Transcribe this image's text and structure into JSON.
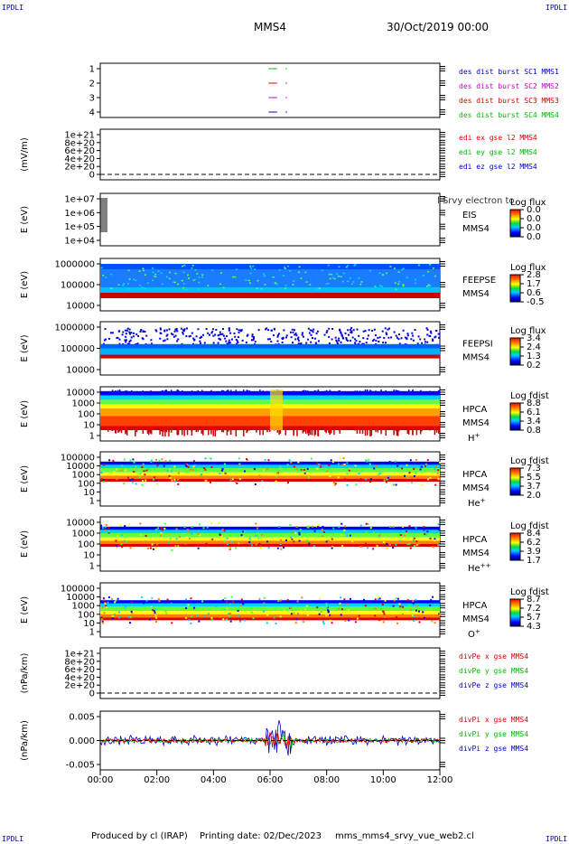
{
  "corner_label": "IPDLI",
  "header": {
    "spacecraft": "MMS4",
    "date": "30/Oct/2019 00:00"
  },
  "footer": {
    "produced": "Produced by cl (IRAP)",
    "printing": "Printing date: 02/Dec/2023",
    "script": "mms_mms4_srvy_vue_web2.cl"
  },
  "colors": {
    "blue": "#0000cc",
    "red": "#dd0000",
    "green": "#00bb00",
    "magenta": "#cc00cc",
    "brand": "#0000aa"
  },
  "chart_data": [
    {
      "type": "line",
      "panel": "burst",
      "yticks": [
        "1",
        "2",
        "3",
        "4"
      ],
      "ylim": [
        0.5,
        4.5
      ],
      "legend": [
        {
          "text": "des dist burst SC1 MMS1",
          "color": "#0000cc"
        },
        {
          "text": "des dist burst SC2 MMS2",
          "color": "#cc00cc"
        },
        {
          "text": "des dist burst SC3 MMS3",
          "color": "#dd0000"
        },
        {
          "text": "des dist burst SC4 MMS4",
          "color": "#00bb00"
        }
      ],
      "series": [
        {
          "y": 4,
          "segments": [
            [
              5.95,
              6.25
            ],
            [
              6.55,
              6.6
            ]
          ]
        },
        {
          "y": 3,
          "segments": [
            [
              5.95,
              6.25
            ],
            [
              6.55,
              6.6
            ]
          ]
        },
        {
          "y": 2,
          "segments": [
            [
              5.95,
              6.25
            ],
            [
              6.55,
              6.6
            ]
          ]
        },
        {
          "y": 1,
          "segments": [
            [
              5.95,
              6.25
            ],
            [
              6.55,
              6.6
            ]
          ]
        }
      ]
    },
    {
      "type": "line",
      "panel": "edi",
      "ylabel": "(mV/m)",
      "yticks": [
        "1e+21",
        "8e+20",
        "6e+20",
        "4e+20",
        "2e+20",
        "0"
      ],
      "ylim": [
        0,
        1e+21
      ],
      "legend": [
        {
          "text": "edi ex gse l2 MMS4",
          "color": "#dd0000"
        },
        {
          "text": "edi ey gse l2 MMS4",
          "color": "#00bb00"
        },
        {
          "text": "edi ez gse l2 MMS4",
          "color": "#0000cc"
        }
      ]
    },
    {
      "type": "heatmap",
      "panel": "eis",
      "ylabel": "E (eV)",
      "yticks": [
        "1e+07",
        "1e+06",
        "1e+05",
        "1e+04"
      ],
      "ylim": [
        10000.0,
        10000000.0
      ],
      "instrument": [
        "EIS",
        "MMS4"
      ],
      "overlay": "l Srvy electron to",
      "cb_title": "Log flux",
      "cb_ticks": [
        "0.0",
        "0.0",
        "0.0",
        "0.0"
      ]
    },
    {
      "type": "heatmap",
      "panel": "feepse",
      "ylabel": "E (eV)",
      "yticks": [
        "1000000",
        "100000",
        "10000"
      ],
      "ylim": [
        10000.0,
        1000000.0
      ],
      "instrument": [
        "FEEPSE",
        "MMS4"
      ],
      "cb_title": "Log flux",
      "cb_ticks": [
        "2.8",
        "1.7",
        "0.6",
        "-0.5"
      ]
    },
    {
      "type": "heatmap",
      "panel": "feepsi",
      "ylabel": "E (eV)",
      "yticks": [
        "1000000",
        "100000",
        "10000"
      ],
      "ylim": [
        10000.0,
        1000000.0
      ],
      "instrument": [
        "FEEPSI",
        "MMS4"
      ],
      "cb_title": "Log flux",
      "cb_ticks": [
        "3.4",
        "2.4",
        "1.3",
        "0.2"
      ]
    },
    {
      "type": "heatmap",
      "panel": "hpca_h",
      "ylabel": "E (eV)",
      "yticks": [
        "10000",
        "1000",
        "100",
        "10",
        "1"
      ],
      "ylim": [
        1,
        20000.0
      ],
      "instrument": [
        "HPCA",
        "MMS4"
      ],
      "species": "H",
      "charge": "+",
      "cb_title": "Log fdist",
      "cb_ticks": [
        "8.8",
        "6.1",
        "3.4",
        "0.8"
      ]
    },
    {
      "type": "heatmap",
      "panel": "hpca_he",
      "ylabel": "E (eV)",
      "yticks": [
        "100000",
        "10000",
        "1000",
        "100",
        "10",
        "1"
      ],
      "ylim": [
        1,
        100000.0
      ],
      "instrument": [
        "HPCA",
        "MMS4"
      ],
      "species": "He",
      "charge": "+",
      "cb_title": "Log fdist",
      "cb_ticks": [
        "7.3",
        "5.5",
        "3.7",
        "2.0"
      ]
    },
    {
      "type": "heatmap",
      "panel": "hpca_hepp",
      "ylabel": "E (eV)",
      "yticks": [
        "10000",
        "1000",
        "100",
        "10",
        "1"
      ],
      "ylim": [
        1,
        20000.0
      ],
      "instrument": [
        "HPCA",
        "MMS4"
      ],
      "species": "He",
      "charge": "++",
      "cb_title": "Log fdist",
      "cb_ticks": [
        "8.4",
        "6.2",
        "3.9",
        "1.7"
      ]
    },
    {
      "type": "heatmap",
      "panel": "hpca_o",
      "ylabel": "E (eV)",
      "yticks": [
        "100000",
        "10000",
        "1000",
        "100",
        "10",
        "1"
      ],
      "ylim": [
        1,
        100000.0
      ],
      "instrument": [
        "HPCA",
        "MMS4"
      ],
      "species": "O",
      "charge": "+",
      "cb_title": "Log fdist",
      "cb_ticks": [
        "8.7",
        "7.2",
        "5.7",
        "4.3"
      ]
    },
    {
      "type": "line",
      "panel": "divpe",
      "ylabel": "(nPa/km)",
      "yticks": [
        "1e+21",
        "8e+20",
        "6e+20",
        "4e+20",
        "2e+20",
        "0"
      ],
      "ylim": [
        0,
        1e+21
      ],
      "legend": [
        {
          "text": "divPe x gse MMS4",
          "color": "#dd0000"
        },
        {
          "text": "divPe y gse MMS4",
          "color": "#00bb00"
        },
        {
          "text": "divPe z gse MMS4",
          "color": "#0000cc"
        }
      ]
    },
    {
      "type": "line",
      "panel": "divpi",
      "ylabel": "(nPa/km)",
      "yticks": [
        "0.005",
        "0.000",
        "-0.005"
      ],
      "ylim": [
        -0.008,
        0.008
      ],
      "legend": [
        {
          "text": "divPi x gse MMS4",
          "color": "#dd0000"
        },
        {
          "text": "divPi y gse MMS4",
          "color": "#00bb00"
        },
        {
          "text": "divPi z gse MMS4",
          "color": "#0000cc"
        }
      ]
    }
  ],
  "xaxis": {
    "ticks": [
      "00:00",
      "02:00",
      "04:00",
      "06:00",
      "08:00",
      "10:00",
      "12:00"
    ],
    "xlim": [
      0,
      12
    ]
  }
}
